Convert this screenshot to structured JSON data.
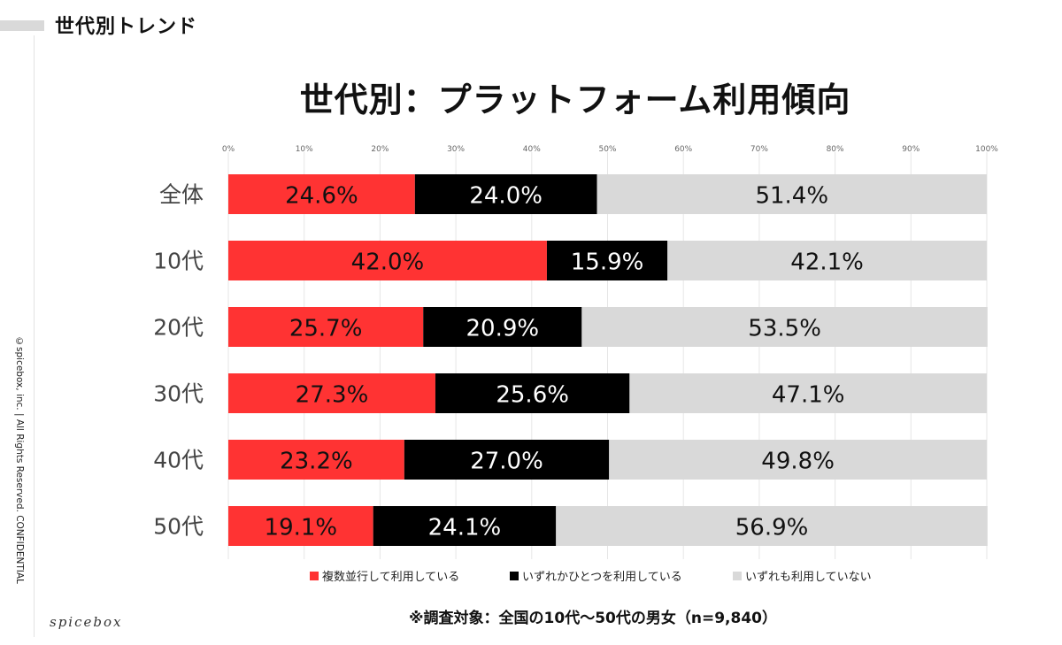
{
  "slide": {
    "section_title": "世代別トレンド",
    "copyright": "©spicebox, inc. | All Rights Reserved. CONFIDENTIAL",
    "brand": "spicebox",
    "footnote": "※調査対象：全国の10代〜50代の男女（n=9,840）"
  },
  "colors": {
    "multiple": "#ff3333",
    "single": "#000000",
    "none": "#d9d9d9",
    "grid": "#e6e6e6"
  },
  "chart_data": {
    "type": "bar",
    "orientation": "horizontal",
    "stacked": true,
    "title": "世代別：プラットフォーム利用傾向",
    "categories": [
      "全体",
      "10代",
      "20代",
      "30代",
      "40代",
      "50代"
    ],
    "series": [
      {
        "name": "複数並行して利用している",
        "values": [
          24.6,
          42.0,
          25.7,
          27.3,
          23.2,
          19.1
        ],
        "labels": [
          "24.6%",
          "42.0%",
          "25.7%",
          "27.3%",
          "23.2%",
          "19.1%"
        ]
      },
      {
        "name": "いずれかひとつを利用している",
        "values": [
          24.0,
          15.9,
          20.9,
          25.6,
          27.0,
          24.1
        ],
        "labels": [
          "24.0%",
          "15.9%",
          "20.9%",
          "25.6%",
          "27.0%",
          "24.1%"
        ]
      },
      {
        "name": "いずれも利用していない",
        "values": [
          51.4,
          42.1,
          53.5,
          47.1,
          49.8,
          56.9
        ],
        "labels": [
          "51.4%",
          "42.1%",
          "53.5%",
          "47.1%",
          "49.8%",
          "56.9%"
        ]
      }
    ],
    "x_ticks": [
      "0%",
      "10%",
      "20%",
      "30%",
      "40%",
      "50%",
      "60%",
      "70%",
      "80%",
      "90%",
      "100%"
    ],
    "xlim": [
      0,
      100
    ],
    "grid": true,
    "legend": "bottom"
  }
}
